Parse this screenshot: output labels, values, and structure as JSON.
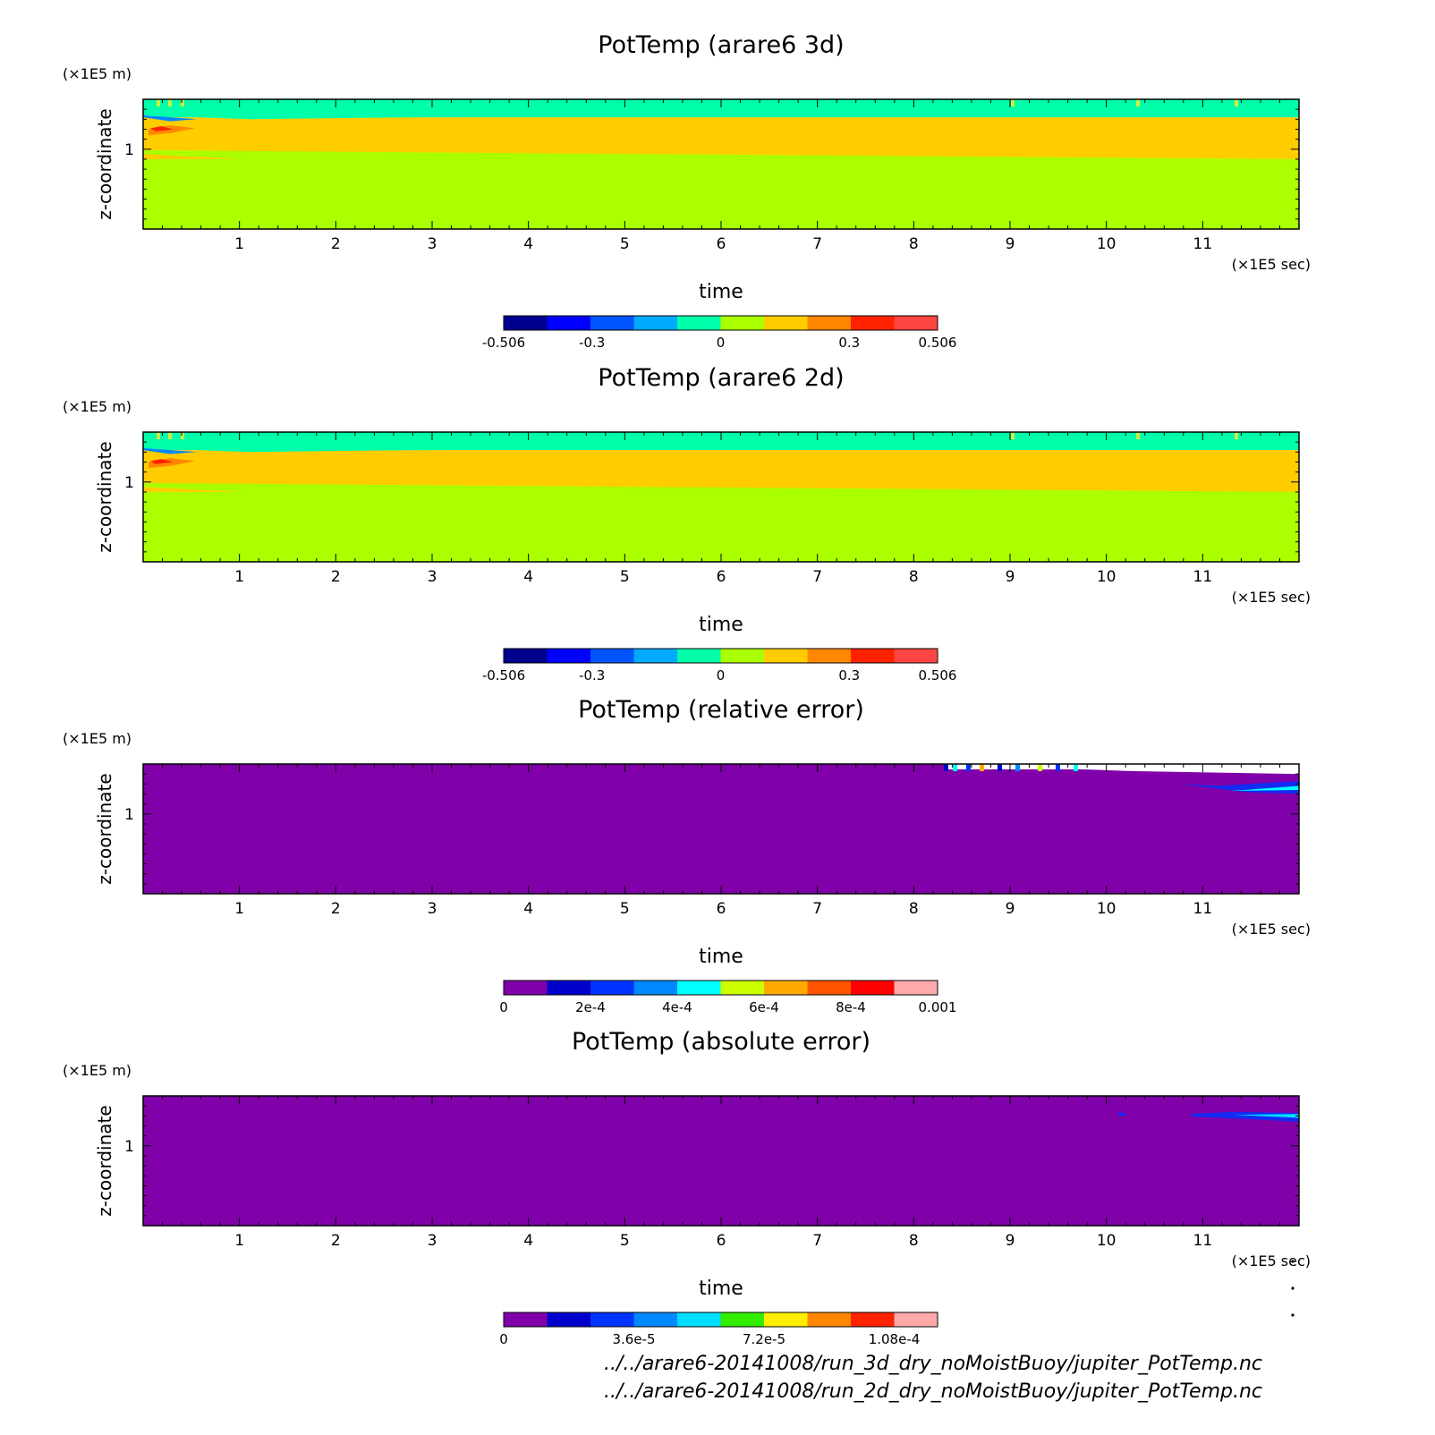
{
  "figure": {
    "source_files": [
      "../../arare6-20141008/run_3d_dry_noMoistBuoy/jupiter_PotTemp.nc",
      "../../arare6-20141008/run_2d_dry_noMoistBuoy/jupiter_PotTemp.nc"
    ]
  },
  "chart_data": [
    {
      "type": "heatmap",
      "title": "PotTemp (arare6 3d)",
      "xlabel": "time",
      "x_unit": "(×1E5 sec)",
      "ylabel": "z-coordinate",
      "y_unit": "(×1E5 m)",
      "xlim": [
        0,
        12
      ],
      "ylim": [
        0.2,
        1.5
      ],
      "x_ticks": [
        "1",
        "2",
        "3",
        "4",
        "5",
        "6",
        "7",
        "8",
        "9",
        "10",
        "11"
      ],
      "y_ticks": [
        "1"
      ],
      "colorbar": {
        "colors": [
          "#00008f",
          "#0000ff",
          "#0055ff",
          "#00aaff",
          "#00ffaa",
          "#aaff00",
          "#ffcc00",
          "#ff8800",
          "#ff2200",
          "#ff4444"
        ],
        "tick_labels": [
          "-0.506",
          "-0.3",
          "0",
          "0.3",
          "0.506"
        ],
        "tick_values": [
          -0.506,
          -0.3,
          0,
          0.3,
          0.506
        ],
        "range": [
          -0.506,
          0.506
        ]
      },
      "field_bands": [
        {
          "from": 0.2,
          "to": 0.9,
          "value_class": "0 to 0.1",
          "color": "#aaff00"
        },
        {
          "from": 0.9,
          "to": 1.32,
          "value_class": "0.1 to 0.2",
          "color": "#ffcc00"
        },
        {
          "from": 1.32,
          "to": 1.5,
          "value_class": "-0.1 to 0",
          "color": "#00ffaa"
        }
      ]
    },
    {
      "type": "heatmap",
      "title": "PotTemp (arare6 2d)",
      "xlabel": "time",
      "x_unit": "(×1E5 sec)",
      "ylabel": "z-coordinate",
      "y_unit": "(×1E5 m)",
      "xlim": [
        0,
        12
      ],
      "ylim": [
        0.2,
        1.5
      ],
      "x_ticks": [
        "1",
        "2",
        "3",
        "4",
        "5",
        "6",
        "7",
        "8",
        "9",
        "10",
        "11"
      ],
      "y_ticks": [
        "1"
      ],
      "colorbar": {
        "colors": [
          "#00008f",
          "#0000ff",
          "#0055ff",
          "#00aaff",
          "#00ffaa",
          "#aaff00",
          "#ffcc00",
          "#ff8800",
          "#ff2200",
          "#ff4444"
        ],
        "tick_labels": [
          "-0.506",
          "-0.3",
          "0",
          "0.3",
          "0.506"
        ],
        "tick_values": [
          -0.506,
          -0.3,
          0,
          0.3,
          0.506
        ],
        "range": [
          -0.506,
          0.506
        ]
      },
      "field_bands": [
        {
          "from": 0.2,
          "to": 0.9,
          "value_class": "0 to 0.1",
          "color": "#aaff00"
        },
        {
          "from": 0.9,
          "to": 1.32,
          "value_class": "0.1 to 0.2",
          "color": "#ffcc00"
        },
        {
          "from": 1.32,
          "to": 1.5,
          "value_class": "-0.1 to 0",
          "color": "#00ffaa"
        }
      ]
    },
    {
      "type": "heatmap",
      "title": "PotTemp (relative error)",
      "xlabel": "time",
      "x_unit": "(×1E5 sec)",
      "ylabel": "z-coordinate",
      "y_unit": "(×1E5 m)",
      "xlim": [
        0,
        12
      ],
      "ylim": [
        0.2,
        1.5
      ],
      "x_ticks": [
        "1",
        "2",
        "3",
        "4",
        "5",
        "6",
        "7",
        "8",
        "9",
        "10",
        "11"
      ],
      "y_ticks": [
        "1"
      ],
      "colorbar": {
        "colors": [
          "#8000aa",
          "#0000cc",
          "#0033ff",
          "#0088ff",
          "#00ffff",
          "#ccff00",
          "#ffaa00",
          "#ff5500",
          "#ff0000",
          "#ffaaaa"
        ],
        "tick_labels": [
          "0",
          "2e-4",
          "4e-4",
          "6e-4",
          "8e-4",
          "0.001"
        ],
        "tick_values": [
          0,
          0.0002,
          0.0004,
          0.0006,
          0.0008,
          0.001
        ],
        "range": [
          0,
          0.001
        ]
      },
      "field_bands": [
        {
          "from": 0.2,
          "to": 1.5,
          "value_class": "0 to 1e-4",
          "color": "#8000aa"
        }
      ]
    },
    {
      "type": "heatmap",
      "title": "PotTemp (absolute error)",
      "xlabel": "time",
      "x_unit": "(×1E5 sec)",
      "ylabel": "z-coordinate",
      "y_unit": "(×1E5 m)",
      "xlim": [
        0,
        12
      ],
      "ylim": [
        0.2,
        1.5
      ],
      "x_ticks": [
        "1",
        "2",
        "3",
        "4",
        "5",
        "6",
        "7",
        "8",
        "9",
        "10",
        "11"
      ],
      "y_ticks": [
        "1"
      ],
      "colorbar": {
        "colors": [
          "#8000aa",
          "#0000cc",
          "#0033ff",
          "#0088ff",
          "#00ddff",
          "#33ee00",
          "#ffee00",
          "#ff8800",
          "#ff2200",
          "#ffaaaa"
        ],
        "tick_labels": [
          "0",
          "3.6e-5",
          "7.2e-5",
          "1.08e-4"
        ],
        "tick_values": [
          0,
          3.6e-05,
          7.2e-05,
          0.000108
        ],
        "range": [
          0,
          0.00012
        ]
      },
      "field_bands": [
        {
          "from": 0.2,
          "to": 1.5,
          "value_class": "0 to 1.2e-5",
          "color": "#8000aa"
        }
      ]
    }
  ]
}
